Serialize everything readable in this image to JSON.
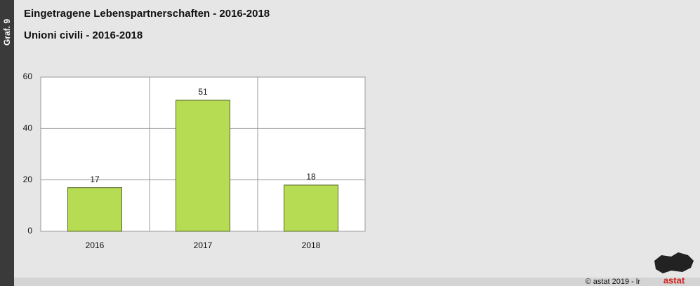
{
  "figure_label": "Graf. 9",
  "credit": "© astat 2019 - lr",
  "logo": "astat",
  "chart_data": {
    "type": "bar",
    "title": "Eingetragene Lebenspartnerschaften - 2016-2018",
    "subtitle": "Unioni civili - 2016-2018",
    "categories": [
      "2016",
      "2017",
      "2018"
    ],
    "values": [
      17,
      51,
      18
    ],
    "color": "#b5dc52",
    "ylim": [
      0,
      60
    ],
    "yticks": [
      0,
      20,
      40,
      60
    ],
    "grid": true
  }
}
